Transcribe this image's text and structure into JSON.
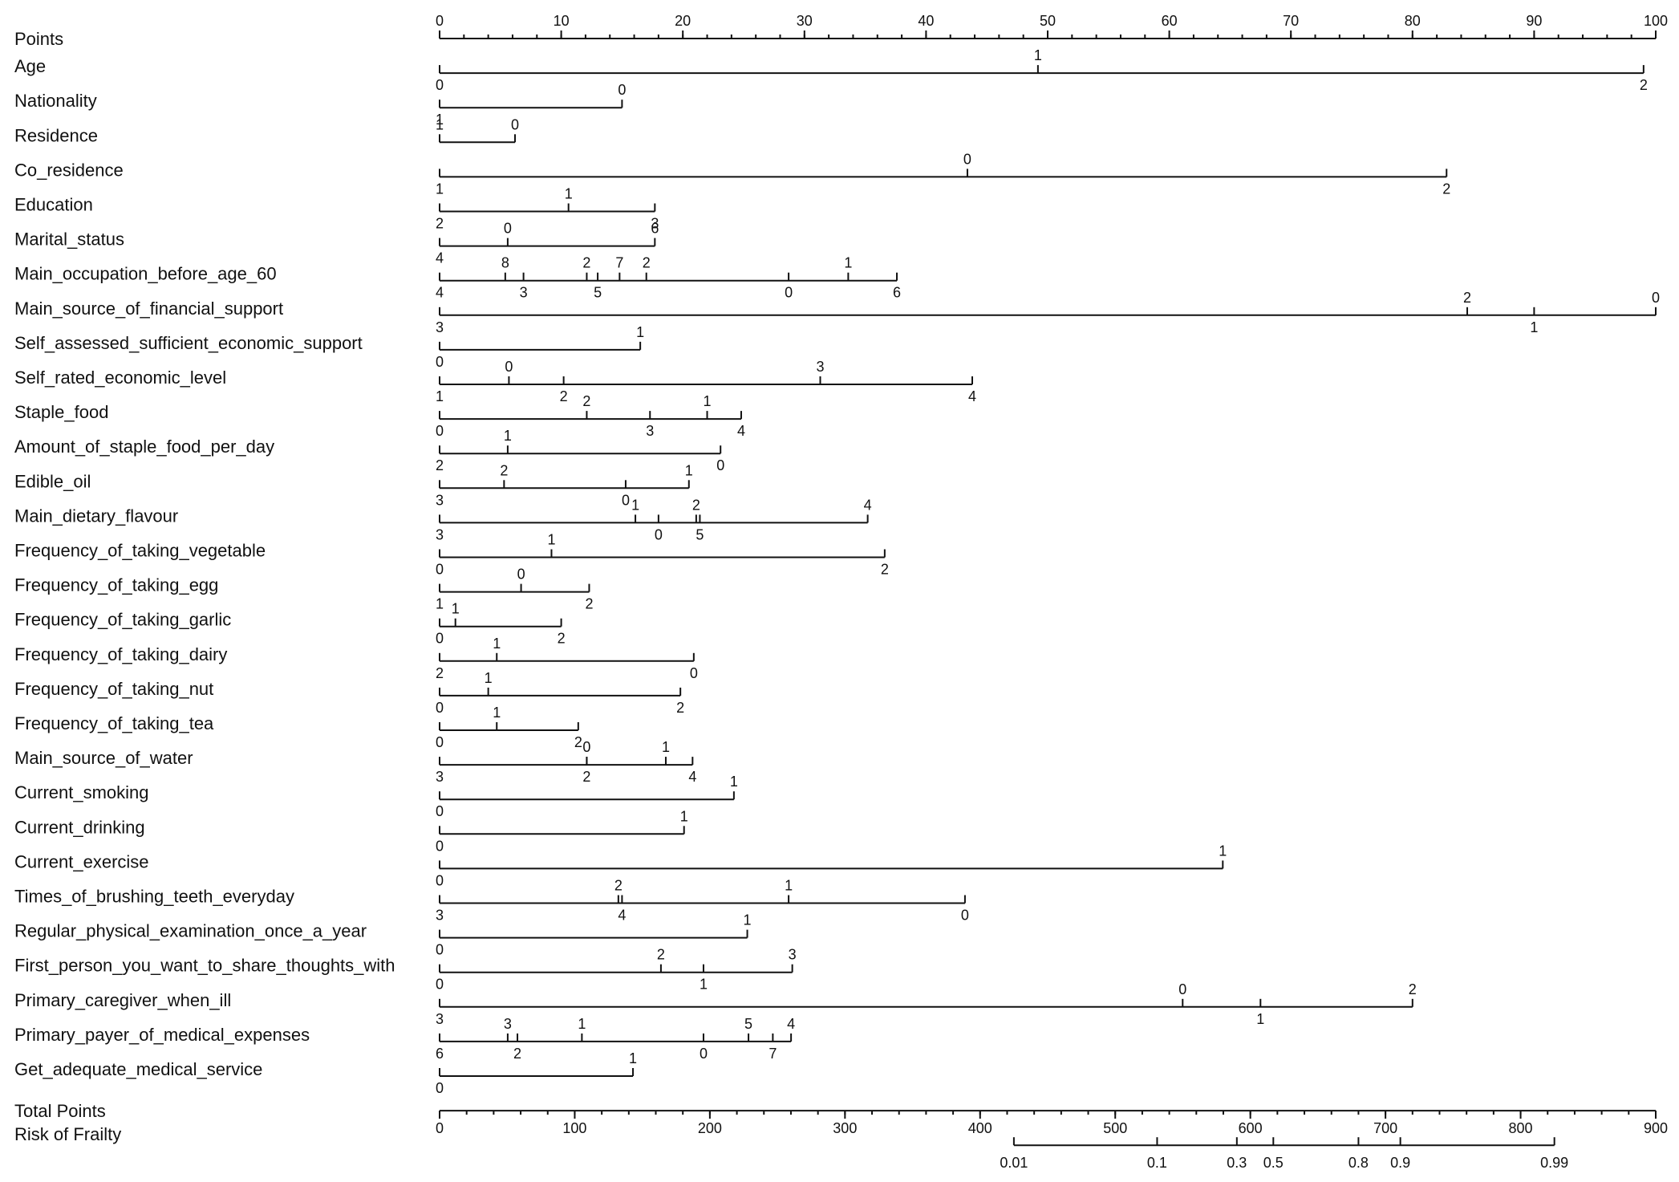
{
  "chart_data": {
    "type": "nomogram",
    "points_axis": {
      "label": "Points",
      "range": [
        0,
        100
      ],
      "major_ticks": [
        0,
        10,
        20,
        30,
        40,
        50,
        60,
        70,
        80,
        90,
        100
      ],
      "minor_step": 2
    },
    "variables": [
      {
        "name": "Age",
        "span": [
          0,
          99
        ],
        "ticks": [
          {
            "label": "0",
            "points": 0,
            "side": "below"
          },
          {
            "label": "1",
            "points": 49.2,
            "side": "above"
          },
          {
            "label": "2",
            "points": 99,
            "side": "below"
          }
        ]
      },
      {
        "name": "Nationality",
        "span": [
          0,
          15
        ],
        "ticks": [
          {
            "label": "1",
            "points": 0,
            "side": "below"
          },
          {
            "label": "0",
            "points": 15,
            "side": "above"
          }
        ]
      },
      {
        "name": "Residence",
        "span": [
          0,
          6.2
        ],
        "ticks": [
          {
            "label": "1",
            "points": 0,
            "side": "above"
          },
          {
            "label": "0",
            "points": 6.2,
            "side": "above"
          }
        ]
      },
      {
        "name": "Co_residence",
        "span": [
          0,
          82.8
        ],
        "ticks": [
          {
            "label": "1",
            "points": 0,
            "side": "below"
          },
          {
            "label": "0",
            "points": 43.4,
            "side": "above"
          },
          {
            "label": "2",
            "points": 82.8,
            "side": "below"
          }
        ]
      },
      {
        "name": "Education",
        "span": [
          0,
          17.7
        ],
        "ticks": [
          {
            "label": "2",
            "points": 0,
            "side": "below"
          },
          {
            "label": "1",
            "points": 10.6,
            "side": "above"
          },
          {
            "label": "3",
            "points": 17.7,
            "side": "below"
          }
        ]
      },
      {
        "name": "Marital_status",
        "span": [
          0,
          17.7
        ],
        "ticks": [
          {
            "label": "4",
            "points": 0,
            "side": "below"
          },
          {
            "label": "0",
            "points": 5.6,
            "side": "above"
          },
          {
            "label": "6",
            "points": 17.7,
            "side": "above"
          }
        ]
      },
      {
        "name": "Main_occupation_before_age_60",
        "span": [
          0,
          37.6
        ],
        "ticks": [
          {
            "label": "4",
            "points": 0,
            "side": "below"
          },
          {
            "label": "8",
            "points": 5.4,
            "side": "above"
          },
          {
            "label": "3",
            "points": 6.9,
            "side": "below"
          },
          {
            "label": "2",
            "points": 12.1,
            "side": "above"
          },
          {
            "label": "5",
            "points": 13,
            "side": "below"
          },
          {
            "label": "7",
            "points": 14.8,
            "side": "above"
          },
          {
            "label": "2",
            "points": 17,
            "side": "above"
          },
          {
            "label": "0",
            "points": 28.7,
            "side": "below"
          },
          {
            "label": "1",
            "points": 33.6,
            "side": "above"
          },
          {
            "label": "6",
            "points": 37.6,
            "side": "below"
          }
        ]
      },
      {
        "name": "Main_source_of_financial_support",
        "span": [
          0,
          100
        ],
        "ticks": [
          {
            "label": "3",
            "points": 0,
            "side": "below"
          },
          {
            "label": "2",
            "points": 84.5,
            "side": "above"
          },
          {
            "label": "1",
            "points": 90,
            "side": "below"
          },
          {
            "label": "0",
            "points": 100,
            "side": "above"
          }
        ]
      },
      {
        "name": "Self_assessed_sufficient_economic_support",
        "span": [
          0,
          16.5
        ],
        "ticks": [
          {
            "label": "0",
            "points": 0,
            "side": "below"
          },
          {
            "label": "1",
            "points": 16.5,
            "side": "above"
          }
        ]
      },
      {
        "name": "Self_rated_economic_level",
        "span": [
          0,
          43.8
        ],
        "ticks": [
          {
            "label": "1",
            "points": 0,
            "side": "below"
          },
          {
            "label": "0",
            "points": 5.7,
            "side": "above"
          },
          {
            "label": "2",
            "points": 10.2,
            "side": "below"
          },
          {
            "label": "3",
            "points": 31.3,
            "side": "above"
          },
          {
            "label": "4",
            "points": 43.8,
            "side": "below"
          }
        ]
      },
      {
        "name": "Staple_food",
        "span": [
          0,
          24.8
        ],
        "ticks": [
          {
            "label": "0",
            "points": 0,
            "side": "below"
          },
          {
            "label": "2",
            "points": 12.1,
            "side": "above"
          },
          {
            "label": "3",
            "points": 17.3,
            "side": "below"
          },
          {
            "label": "1",
            "points": 22,
            "side": "above"
          },
          {
            "label": "4",
            "points": 24.8,
            "side": "below"
          }
        ]
      },
      {
        "name": "Amount_of_staple_food_per_day",
        "span": [
          0,
          23.1
        ],
        "ticks": [
          {
            "label": "2",
            "points": 0,
            "side": "below"
          },
          {
            "label": "1",
            "points": 5.6,
            "side": "above"
          },
          {
            "label": "0",
            "points": 23.1,
            "side": "below"
          }
        ]
      },
      {
        "name": "Edible_oil",
        "span": [
          0,
          20.5
        ],
        "ticks": [
          {
            "label": "3",
            "points": 0,
            "side": "below"
          },
          {
            "label": "2",
            "points": 5.3,
            "side": "above"
          },
          {
            "label": "0",
            "points": 15.3,
            "side": "below"
          },
          {
            "label": "1",
            "points": 20.5,
            "side": "above"
          }
        ]
      },
      {
        "name": "Main_dietary_flavour",
        "span": [
          0,
          35.2
        ],
        "ticks": [
          {
            "label": "3",
            "points": 0,
            "side": "below"
          },
          {
            "label": "1",
            "points": 16.1,
            "side": "above"
          },
          {
            "label": "0",
            "points": 18,
            "side": "below"
          },
          {
            "label": "2",
            "points": 21.1,
            "side": "above"
          },
          {
            "label": "5",
            "points": 21.4,
            "side": "below"
          },
          {
            "label": "4",
            "points": 35.2,
            "side": "above"
          }
        ]
      },
      {
        "name": "Frequency_of_taking_vegetable",
        "span": [
          0,
          36.6
        ],
        "ticks": [
          {
            "label": "0",
            "points": 0,
            "side": "below"
          },
          {
            "label": "1",
            "points": 9.2,
            "side": "above"
          },
          {
            "label": "2",
            "points": 36.6,
            "side": "below"
          }
        ]
      },
      {
        "name": "Frequency_of_taking_egg",
        "span": [
          0,
          12.3
        ],
        "ticks": [
          {
            "label": "1",
            "points": 0,
            "side": "below"
          },
          {
            "label": "0",
            "points": 6.7,
            "side": "above"
          },
          {
            "label": "2",
            "points": 12.3,
            "side": "below"
          }
        ]
      },
      {
        "name": "Frequency_of_taking_garlic",
        "span": [
          0,
          10
        ],
        "ticks": [
          {
            "label": "0",
            "points": 0,
            "side": "below"
          },
          {
            "label": "1",
            "points": 1.3,
            "side": "above"
          },
          {
            "label": "2",
            "points": 10,
            "side": "below"
          }
        ]
      },
      {
        "name": "Frequency_of_taking_dairy",
        "span": [
          0,
          20.9
        ],
        "ticks": [
          {
            "label": "2",
            "points": 0,
            "side": "below"
          },
          {
            "label": "1",
            "points": 4.7,
            "side": "above"
          },
          {
            "label": "0",
            "points": 20.9,
            "side": "below"
          }
        ]
      },
      {
        "name": "Frequency_of_taking_nut",
        "span": [
          0,
          19.8
        ],
        "ticks": [
          {
            "label": "0",
            "points": 0,
            "side": "below"
          },
          {
            "label": "1",
            "points": 4,
            "side": "above"
          },
          {
            "label": "2",
            "points": 19.8,
            "side": "below"
          }
        ]
      },
      {
        "name": "Frequency_of_taking_tea",
        "span": [
          0,
          11.4
        ],
        "ticks": [
          {
            "label": "0",
            "points": 0,
            "side": "below"
          },
          {
            "label": "1",
            "points": 4.7,
            "side": "above"
          },
          {
            "label": "2",
            "points": 11.4,
            "side": "below"
          }
        ]
      },
      {
        "name": "Main_source_of_water",
        "span": [
          0,
          20.8
        ],
        "ticks": [
          {
            "label": "3",
            "points": 0,
            "side": "below"
          },
          {
            "label": "0",
            "points": 12.1,
            "side": "above"
          },
          {
            "label": "2",
            "points": 12.1,
            "side": "below"
          },
          {
            "label": "1",
            "points": 18.6,
            "side": "above"
          },
          {
            "label": "4",
            "points": 20.8,
            "side": "below"
          }
        ]
      },
      {
        "name": "Current_smoking",
        "span": [
          0,
          24.2
        ],
        "ticks": [
          {
            "label": "0",
            "points": 0,
            "side": "below"
          },
          {
            "label": "1",
            "points": 24.2,
            "side": "above"
          }
        ]
      },
      {
        "name": "Current_drinking",
        "span": [
          0,
          20.1
        ],
        "ticks": [
          {
            "label": "0",
            "points": 0,
            "side": "below"
          },
          {
            "label": "1",
            "points": 20.1,
            "side": "above"
          }
        ]
      },
      {
        "name": "Current_exercise",
        "span": [
          0,
          64.4
        ],
        "ticks": [
          {
            "label": "0",
            "points": 0,
            "side": "below"
          },
          {
            "label": "1",
            "points": 64.4,
            "side": "above"
          }
        ]
      },
      {
        "name": "Times_of_brushing_teeth_everyday",
        "span": [
          0,
          43.2
        ],
        "ticks": [
          {
            "label": "3",
            "points": 0,
            "side": "below"
          },
          {
            "label": "2",
            "points": 14.7,
            "side": "above"
          },
          {
            "label": "4",
            "points": 15,
            "side": "below"
          },
          {
            "label": "1",
            "points": 28.7,
            "side": "above"
          },
          {
            "label": "0",
            "points": 43.2,
            "side": "below"
          }
        ]
      },
      {
        "name": "Regular_physical_examination_once_a_year",
        "span": [
          0,
          25.3
        ],
        "ticks": [
          {
            "label": "0",
            "points": 0,
            "side": "below"
          },
          {
            "label": "1",
            "points": 25.3,
            "side": "above"
          }
        ]
      },
      {
        "name": "First_person_you_want_to_share_thoughts_with",
        "span": [
          0,
          29
        ],
        "ticks": [
          {
            "label": "0",
            "points": 0,
            "side": "below"
          },
          {
            "label": "2",
            "points": 18.2,
            "side": "above"
          },
          {
            "label": "1",
            "points": 21.7,
            "side": "below"
          },
          {
            "label": "3",
            "points": 29,
            "side": "above"
          }
        ]
      },
      {
        "name": "Primary_caregiver_when_ill",
        "span": [
          0,
          80
        ],
        "ticks": [
          {
            "label": "3",
            "points": 0,
            "side": "below"
          },
          {
            "label": "0",
            "points": 61.1,
            "side": "above"
          },
          {
            "label": "1",
            "points": 67.5,
            "side": "below"
          },
          {
            "label": "2",
            "points": 80,
            "side": "above"
          }
        ]
      },
      {
        "name": "Primary_payer_of_medical_expenses",
        "span": [
          0,
          28.9
        ],
        "ticks": [
          {
            "label": "6",
            "points": 0,
            "side": "below"
          },
          {
            "label": "3",
            "points": 5.6,
            "side": "above"
          },
          {
            "label": "2",
            "points": 6.4,
            "side": "below"
          },
          {
            "label": "1",
            "points": 11.7,
            "side": "above"
          },
          {
            "label": "0",
            "points": 21.7,
            "side": "below"
          },
          {
            "label": "5",
            "points": 25.4,
            "side": "above"
          },
          {
            "label": "7",
            "points": 27.4,
            "side": "below"
          },
          {
            "label": "4",
            "points": 28.9,
            "side": "above"
          }
        ]
      },
      {
        "name": "Get_adequate_medical_service",
        "span": [
          0,
          15.9
        ],
        "ticks": [
          {
            "label": "0",
            "points": 0,
            "side": "below"
          },
          {
            "label": "1",
            "points": 15.9,
            "side": "above"
          }
        ]
      }
    ],
    "total_points_axis": {
      "label": "Total Points",
      "range": [
        0,
        900
      ],
      "major_ticks": [
        0,
        100,
        200,
        300,
        400,
        500,
        600,
        700,
        800,
        900
      ],
      "minor_step": 20
    },
    "risk_axis": {
      "label": "Risk of Frailty",
      "span_total_points": [
        425,
        825
      ],
      "ticks": [
        {
          "label": "0.01",
          "total_points": 425
        },
        {
          "label": "0.1",
          "total_points": 531
        },
        {
          "label": "0.3",
          "total_points": 590
        },
        {
          "label": "0.5",
          "total_points": 617
        },
        {
          "label": "0.8",
          "total_points": 680
        },
        {
          "label": "0.9",
          "total_points": 711
        },
        {
          "label": "0.99",
          "total_points": 825
        }
      ]
    }
  }
}
